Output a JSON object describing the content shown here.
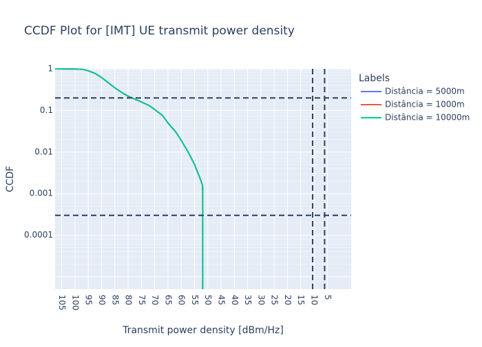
{
  "chart_data": {
    "type": "line",
    "title": "CCDF Plot for [IMT] UE transmit power density",
    "xlabel": "Transmit power density [dBm/Hz]",
    "ylabel": "CCDF",
    "x_scale": "linear",
    "y_scale": "log",
    "xlim": [
      -107.5,
      4
    ],
    "ylim": [
      5.01e-06,
      1.0
    ],
    "x_ticks": [
      -105,
      -100,
      -95,
      -90,
      -85,
      -80,
      -75,
      -70,
      -65,
      -60,
      -55,
      -50,
      -45,
      -40,
      -35,
      -30,
      -25,
      -20,
      -15,
      -10,
      -5
    ],
    "x_tick_labels": [
      "105",
      "100",
      "95",
      "90",
      "85",
      "80",
      "75",
      "70",
      "65",
      "60",
      "55",
      "50",
      "45",
      "40",
      "35",
      "30",
      "25",
      "20",
      "15",
      "10",
      "5"
    ],
    "y_ticks": [
      1,
      0.1,
      0.01,
      0.001,
      0.0001
    ],
    "y_tick_labels": [
      "1",
      "0.1",
      "0.01",
      "0.001",
      "0.0001"
    ],
    "grid": true,
    "plot_background": "#e5ecf6",
    "legend": {
      "title": "Labels",
      "placement": "right"
    },
    "series": [
      {
        "name": "Distância = 5000m",
        "color": "#636efa",
        "x": [
          -107.5,
          -100,
          -97,
          -95,
          -92.5,
          -90,
          -87,
          -85,
          -82,
          -80,
          -75,
          -72,
          -70,
          -67,
          -65,
          -62,
          -60,
          -57,
          -55,
          -53,
          -52,
          -51.9,
          -51.9
        ],
        "y": [
          1.0,
          0.99,
          0.97,
          0.9,
          0.78,
          0.62,
          0.44,
          0.35,
          0.26,
          0.22,
          0.16,
          0.13,
          0.105,
          0.075,
          0.05,
          0.03,
          0.019,
          0.009,
          0.005,
          0.0024,
          0.0016,
          0.0011,
          5.01e-06
        ]
      },
      {
        "name": "Distância = 1000m",
        "color": "#ef553b",
        "x": [
          -107.5,
          -100,
          -97,
          -95,
          -92.5,
          -90,
          -87,
          -85,
          -82,
          -80,
          -75,
          -72,
          -70,
          -67,
          -65,
          -62,
          -60,
          -57,
          -55,
          -53,
          -52,
          -51.9,
          -51.9
        ],
        "y": [
          1.0,
          0.99,
          0.97,
          0.9,
          0.78,
          0.62,
          0.44,
          0.35,
          0.26,
          0.22,
          0.16,
          0.13,
          0.105,
          0.075,
          0.05,
          0.03,
          0.019,
          0.009,
          0.005,
          0.0024,
          0.0016,
          0.0011,
          5.01e-06
        ]
      },
      {
        "name": "Distância = 10000m",
        "color": "#00cc96",
        "x": [
          -107.5,
          -100,
          -97,
          -95,
          -92.5,
          -90,
          -87,
          -85,
          -82,
          -80,
          -75,
          -72,
          -70,
          -67,
          -65,
          -62,
          -60,
          -57,
          -55,
          -53,
          -52,
          -51.9,
          -51.9
        ],
        "y": [
          1.0,
          0.99,
          0.97,
          0.9,
          0.78,
          0.62,
          0.44,
          0.35,
          0.26,
          0.22,
          0.16,
          0.13,
          0.105,
          0.075,
          0.05,
          0.03,
          0.019,
          0.009,
          0.005,
          0.0024,
          0.0016,
          0.0011,
          5.01e-06
        ]
      }
    ],
    "reference_lines": {
      "color": "#2a3f5f",
      "style": "dashed",
      "horizontal": [
        0.2,
        0.0003
      ],
      "vertical": [
        -10.5,
        -6
      ]
    }
  }
}
